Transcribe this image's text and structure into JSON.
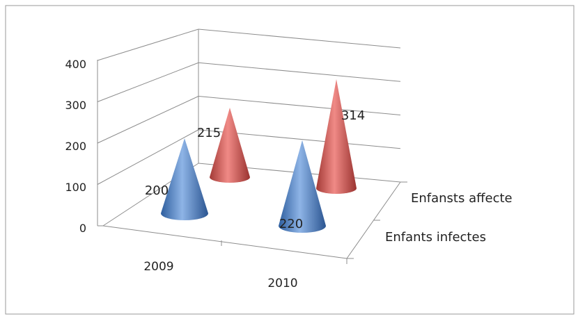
{
  "chart_data": {
    "type": "bar",
    "bar_shape": "cone",
    "view": "3d",
    "categories": [
      "2009",
      "2010"
    ],
    "series": [
      {
        "name": "Enfants infectes",
        "values": [
          200,
          220
        ],
        "color": "#4A7DC0"
      },
      {
        "name": "Enfansts affecte",
        "values": [
          215,
          314
        ],
        "color": "#C0504D"
      }
    ],
    "data_labels": [
      "200",
      "220",
      "215",
      "314"
    ],
    "y_ticks": [
      "0",
      "100",
      "200",
      "300",
      "400"
    ],
    "ylim": [
      0,
      400
    ],
    "grid": true,
    "title": "",
    "xlabel": "",
    "ylabel": ""
  }
}
